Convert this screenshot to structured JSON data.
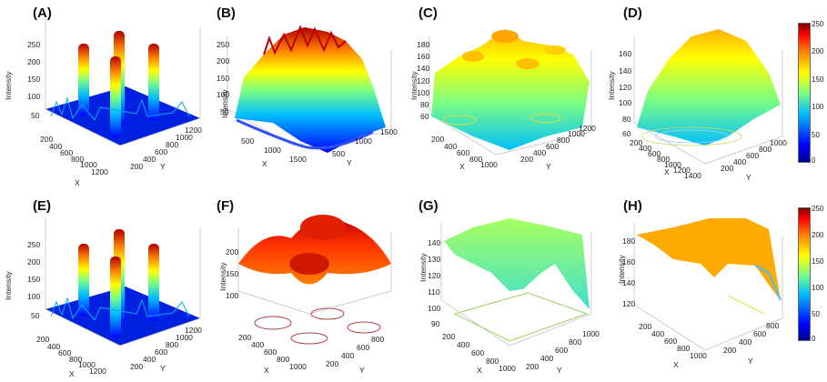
{
  "panels": [
    {
      "label": "(A)",
      "ylabel": "Intensity",
      "xlabel": "X",
      "ylabel2": "Y",
      "zticks": [
        "250",
        "200",
        "150",
        "100",
        "50"
      ],
      "xticks": [
        "200",
        "400",
        "600",
        "800",
        "1000",
        "1200"
      ],
      "yticks": [
        "200",
        "400",
        "600",
        "800",
        "1000",
        "1200"
      ]
    },
    {
      "label": "(B)",
      "ylabel": "Intensity",
      "xlabel": "X",
      "ylabel2": "Y",
      "zticks": [
        "250",
        "200",
        "150",
        "100",
        "50"
      ],
      "xticks": [
        "500",
        "1000",
        "1500"
      ],
      "yticks": [
        "500",
        "1000",
        "1500"
      ]
    },
    {
      "label": "(C)",
      "ylabel": "Intensity",
      "xlabel": "X",
      "ylabel2": "Y",
      "zticks": [
        "180",
        "160",
        "140",
        "120",
        "100",
        "80",
        "60"
      ],
      "xticks": [
        "200",
        "400",
        "600",
        "800",
        "1000"
      ],
      "yticks": [
        "200",
        "400",
        "600",
        "800",
        "1000",
        "1200"
      ]
    },
    {
      "label": "(D)",
      "ylabel": "Intensity",
      "xlabel": "X",
      "ylabel2": "Y",
      "zticks": [
        "160",
        "140",
        "120",
        "100",
        "80",
        "60"
      ],
      "xticks": [
        "200",
        "400",
        "600",
        "800",
        "1000",
        "1200",
        "1400"
      ],
      "yticks": [
        "200",
        "400",
        "600",
        "800",
        "1000"
      ]
    },
    {
      "label": "(E)",
      "ylabel": "Intensity",
      "xlabel": "X",
      "ylabel2": "Y",
      "zticks": [
        "250",
        "200",
        "150",
        "100",
        "50"
      ],
      "xticks": [
        "200",
        "400",
        "600",
        "800",
        "1000",
        "1200"
      ],
      "yticks": [
        "200",
        "400",
        "600",
        "800",
        "1000",
        "1200"
      ]
    },
    {
      "label": "(F)",
      "ylabel": "Intensity",
      "xlabel": "X",
      "ylabel2": "Y",
      "zticks": [
        "200",
        "150",
        "100"
      ],
      "xticks": [
        "200",
        "400",
        "600",
        "800",
        "1000"
      ],
      "yticks": [
        "200",
        "400",
        "600",
        "800"
      ]
    },
    {
      "label": "(G)",
      "ylabel": "Intensity",
      "xlabel": "X",
      "ylabel2": "Y",
      "zticks": [
        "140",
        "130",
        "120",
        "110",
        "100",
        "90"
      ],
      "xticks": [
        "200",
        "400",
        "600",
        "800",
        "1000"
      ],
      "yticks": [
        "200",
        "400",
        "600",
        "800",
        "1000"
      ]
    },
    {
      "label": "(H)",
      "ylabel": "Intensity",
      "xlabel": "X",
      "ylabel2": "Y",
      "zticks": [
        "180",
        "160",
        "140",
        "120"
      ],
      "xticks": [
        "200",
        "400",
        "600",
        "800",
        "1000"
      ],
      "yticks": [
        "200",
        "400",
        "600",
        "800"
      ]
    }
  ],
  "colorbar_top": {
    "ticks": [
      "250",
      "200",
      "150",
      "100",
      "50",
      "0"
    ]
  },
  "colorbar_bottom": {
    "ticks": [
      "250",
      "200",
      "150",
      "100",
      "50",
      "0"
    ]
  }
}
